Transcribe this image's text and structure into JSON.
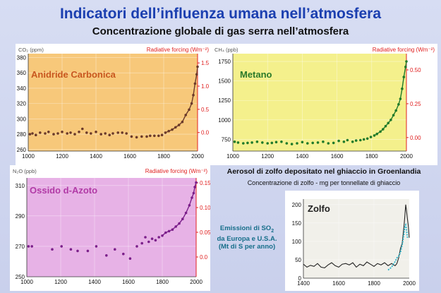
{
  "page": {
    "title": "Indicatori dell’influenza umana nell’atmosfera",
    "subtitle": "Concentrazione globale di gas serra nell’atmosfera"
  },
  "colors": {
    "accent": "#e02020",
    "title": "#1b3fb0",
    "note": "#166e8a"
  },
  "chart_data": [
    {
      "id": "co2",
      "type": "scatter",
      "title": "Anidride Carbonica",
      "left_label": "CO₂ (ppm)",
      "right_label": "Radiative forcing (Wm⁻²)",
      "x_ticks": [
        "1000",
        "1200",
        "1400",
        "1600",
        "1800",
        "2000"
      ],
      "y_ticks": [
        "260",
        "280",
        "300",
        "320",
        "340",
        "360",
        "380"
      ],
      "y2_ticks": [
        "0.0",
        "0.5",
        "1.0",
        "1.5"
      ],
      "xlim": [
        1000,
        2000
      ],
      "ylim": [
        258,
        385
      ],
      "y2lim": [
        -0.4,
        1.7
      ],
      "points": [
        [
          1010,
          280
        ],
        [
          1025,
          281
        ],
        [
          1045,
          279
        ],
        [
          1070,
          282
        ],
        [
          1100,
          281
        ],
        [
          1120,
          283
        ],
        [
          1150,
          280
        ],
        [
          1175,
          281
        ],
        [
          1200,
          283
        ],
        [
          1230,
          281
        ],
        [
          1250,
          282
        ],
        [
          1275,
          280
        ],
        [
          1300,
          283
        ],
        [
          1320,
          287
        ],
        [
          1345,
          282
        ],
        [
          1370,
          281
        ],
        [
          1400,
          283
        ],
        [
          1430,
          280
        ],
        [
          1455,
          281
        ],
        [
          1480,
          279
        ],
        [
          1500,
          281
        ],
        [
          1530,
          282
        ],
        [
          1555,
          282
        ],
        [
          1580,
          281
        ],
        [
          1610,
          277
        ],
        [
          1640,
          276
        ],
        [
          1670,
          277
        ],
        [
          1700,
          277
        ],
        [
          1720,
          278
        ],
        [
          1745,
          278
        ],
        [
          1770,
          278
        ],
        [
          1790,
          279
        ],
        [
          1810,
          282
        ],
        [
          1830,
          284
        ],
        [
          1850,
          286
        ],
        [
          1870,
          289
        ],
        [
          1890,
          292
        ],
        [
          1910,
          296
        ],
        [
          1930,
          305
        ],
        [
          1950,
          312
        ],
        [
          1965,
          320
        ],
        [
          1975,
          331
        ],
        [
          1985,
          346
        ],
        [
          1995,
          358
        ],
        [
          2000,
          368
        ]
      ]
    },
    {
      "id": "ch4",
      "type": "scatter",
      "title": "Metano",
      "left_label": "CH₄ (ppb)",
      "right_label": "Radiative forcing (Wm⁻²)",
      "x_ticks": [
        "1000",
        "1200",
        "1400",
        "1600",
        "1800",
        "2000"
      ],
      "y_ticks": [
        "750",
        "1000",
        "1250",
        "1500",
        "1750"
      ],
      "y2_ticks": [
        "0.00",
        "0.25",
        "0.50"
      ],
      "xlim": [
        1000,
        2000
      ],
      "ylim": [
        600,
        1850
      ],
      "y2lim": [
        -0.1,
        0.62
      ],
      "points": [
        [
          1010,
          720
        ],
        [
          1030,
          710
        ],
        [
          1060,
          700
        ],
        [
          1085,
          705
        ],
        [
          1110,
          710
        ],
        [
          1140,
          720
        ],
        [
          1170,
          710
        ],
        [
          1200,
          700
        ],
        [
          1225,
          705
        ],
        [
          1250,
          715
        ],
        [
          1280,
          720
        ],
        [
          1310,
          700
        ],
        [
          1340,
          690
        ],
        [
          1370,
          700
        ],
        [
          1400,
          715
        ],
        [
          1430,
          700
        ],
        [
          1460,
          705
        ],
        [
          1490,
          710
        ],
        [
          1520,
          720
        ],
        [
          1550,
          700
        ],
        [
          1580,
          705
        ],
        [
          1610,
          730
        ],
        [
          1640,
          720
        ],
        [
          1660,
          740
        ],
        [
          1690,
          720
        ],
        [
          1710,
          735
        ],
        [
          1735,
          740
        ],
        [
          1755,
          750
        ],
        [
          1775,
          760
        ],
        [
          1795,
          780
        ],
        [
          1815,
          800
        ],
        [
          1830,
          820
        ],
        [
          1850,
          850
        ],
        [
          1865,
          880
        ],
        [
          1880,
          920
        ],
        [
          1895,
          960
        ],
        [
          1910,
          1000
        ],
        [
          1925,
          1060
        ],
        [
          1940,
          1120
        ],
        [
          1955,
          1200
        ],
        [
          1965,
          1270
        ],
        [
          1975,
          1400
        ],
        [
          1985,
          1550
        ],
        [
          1995,
          1680
        ],
        [
          2000,
          1750
        ]
      ]
    },
    {
      "id": "n2o",
      "type": "scatter",
      "title": "Ossido d-Azoto",
      "left_label": "N₂O (ppb)",
      "right_label": "Radiative forcing (Wm⁻²)",
      "x_ticks": [
        "1000",
        "1200",
        "1400",
        "1600",
        "1800",
        "2000"
      ],
      "y_ticks": [
        "250",
        "270",
        "290",
        "310"
      ],
      "y2_ticks": [
        "0.0",
        "0.05",
        "0.10",
        "0.15"
      ],
      "xlim": [
        1000,
        2000
      ],
      "ylim": [
        250,
        315
      ],
      "y2lim": [
        -0.04,
        0.16
      ],
      "points": [
        [
          1010,
          270
        ],
        [
          1030,
          270
        ],
        [
          1150,
          268
        ],
        [
          1205,
          270
        ],
        [
          1260,
          268
        ],
        [
          1300,
          267
        ],
        [
          1360,
          267
        ],
        [
          1410,
          270
        ],
        [
          1470,
          264
        ],
        [
          1520,
          268
        ],
        [
          1570,
          265
        ],
        [
          1610,
          262
        ],
        [
          1650,
          270
        ],
        [
          1680,
          272
        ],
        [
          1700,
          276
        ],
        [
          1720,
          273
        ],
        [
          1740,
          275
        ],
        [
          1760,
          274
        ],
        [
          1780,
          276
        ],
        [
          1800,
          277
        ],
        [
          1820,
          279
        ],
        [
          1840,
          280
        ],
        [
          1860,
          281
        ],
        [
          1880,
          283
        ],
        [
          1900,
          285
        ],
        [
          1920,
          288
        ],
        [
          1940,
          292
        ],
        [
          1960,
          297
        ],
        [
          1975,
          302
        ],
        [
          1985,
          305
        ],
        [
          1992,
          309
        ],
        [
          2000,
          312
        ]
      ]
    },
    {
      "id": "so2",
      "type": "line",
      "title": "Zolfo",
      "chart_title": "Aerosol di zolfo depositato nel ghiaccio in Groenlandia",
      "chart_subtitle": "Concentrazione di zolfo - mg per tonnellate di ghiaccio",
      "x_ticks": [
        "1400",
        "1600",
        "1800",
        "2000"
      ],
      "y_ticks": [
        "0",
        "50",
        "100",
        "150",
        "200"
      ],
      "xlim": [
        1400,
        2000
      ],
      "ylim": [
        0,
        215
      ],
      "note_main": "Emissioni di SO",
      "note_sub": "2",
      "note_line2": "da Europa e U.S.A.",
      "note_line3": "(Mt di S per anno)",
      "series": [
        {
          "name": "Zolfo (ghiaccio)",
          "x": [
            1400,
            1420,
            1440,
            1460,
            1480,
            1500,
            1520,
            1540,
            1560,
            1580,
            1600,
            1620,
            1640,
            1660,
            1680,
            1700,
            1720,
            1740,
            1760,
            1780,
            1800,
            1820,
            1840,
            1860,
            1880,
            1900,
            1910,
            1920,
            1930,
            1940,
            1950,
            1960,
            1970,
            1975,
            1980,
            1985,
            1990,
            1995,
            2000
          ],
          "values": [
            38,
            30,
            35,
            32,
            40,
            30,
            28,
            36,
            42,
            34,
            30,
            38,
            40,
            36,
            42,
            30,
            38,
            34,
            44,
            38,
            32,
            40,
            36,
            42,
            34,
            40,
            36,
            34,
            40,
            55,
            80,
            95,
            140,
            170,
            200,
            180,
            160,
            140,
            110
          ]
        },
        {
          "name": "Emissioni SO2",
          "x": [
            1880,
            1900,
            1910,
            1920,
            1930,
            1940,
            1950,
            1960,
            1970,
            1975,
            1980,
            1985,
            1990
          ],
          "values": [
            22,
            30,
            38,
            45,
            55,
            60,
            70,
            90,
            120,
            140,
            145,
            130,
            110
          ]
        }
      ]
    }
  ]
}
